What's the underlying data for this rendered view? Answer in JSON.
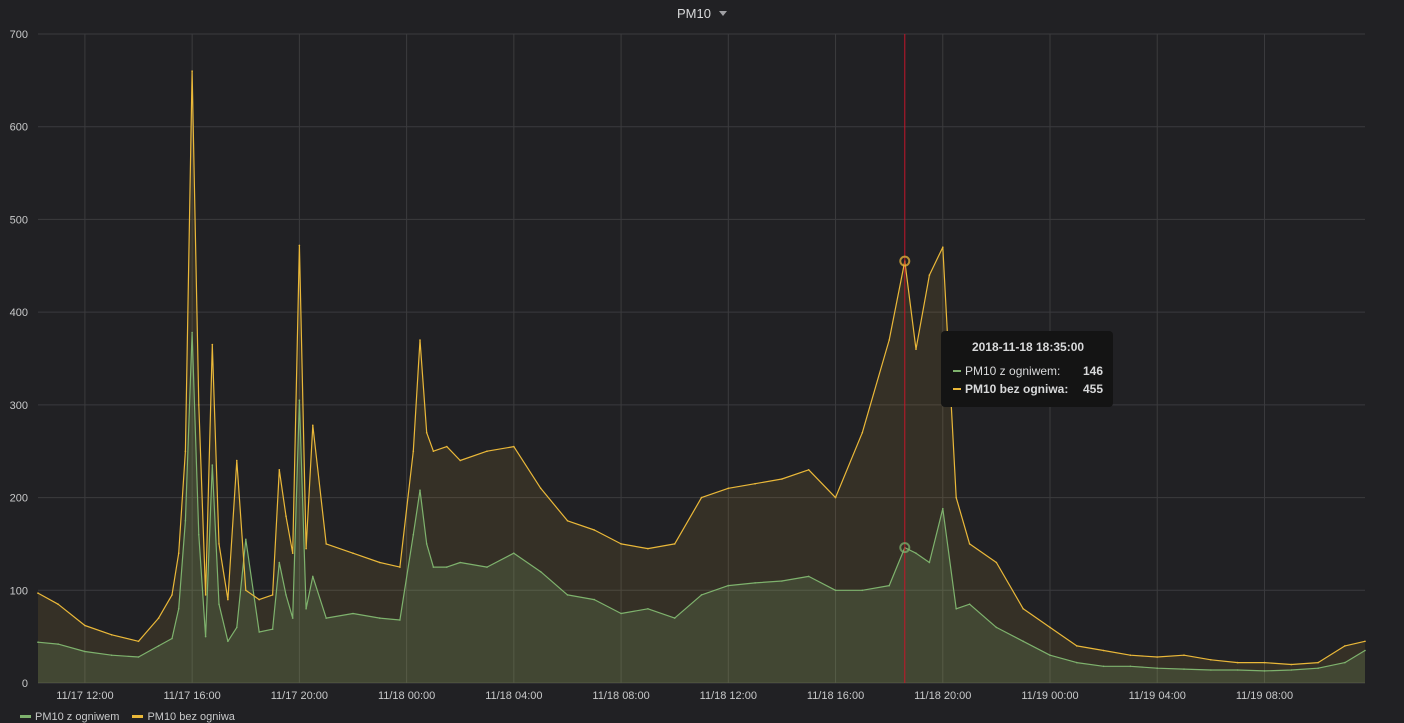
{
  "panel": {
    "title": "PM10"
  },
  "chart_data": {
    "type": "area",
    "title": "PM10",
    "xlabel": "",
    "ylabel": "",
    "ylim": [
      0,
      700
    ],
    "yticks": [
      0,
      100,
      200,
      300,
      400,
      500,
      600,
      700
    ],
    "x_range": [
      "2018-11-17 10:15",
      "2018-11-19 11:45"
    ],
    "xticks": [
      "11/17 12:00",
      "11/17 16:00",
      "11/17 20:00",
      "11/18 00:00",
      "11/18 04:00",
      "11/18 08:00",
      "11/18 12:00",
      "11/18 16:00",
      "11/18 20:00",
      "11/19 00:00",
      "11/19 04:00",
      "11/19 08:00"
    ],
    "grid": true,
    "legend_position": "bottom-left",
    "hover_time": "2018-11-18 18:35",
    "series": [
      {
        "name": "PM10 z ogniwem",
        "color": "#7eb26d",
        "x": [
          "2018-11-17 10:15",
          "2018-11-17 11:00",
          "2018-11-17 12:00",
          "2018-11-17 13:00",
          "2018-11-17 14:00",
          "2018-11-17 14:45",
          "2018-11-17 15:15",
          "2018-11-17 15:30",
          "2018-11-17 15:45",
          "2018-11-17 16:00",
          "2018-11-17 16:15",
          "2018-11-17 16:30",
          "2018-11-17 16:45",
          "2018-11-17 17:00",
          "2018-11-17 17:20",
          "2018-11-17 17:40",
          "2018-11-17 18:00",
          "2018-11-17 18:30",
          "2018-11-17 19:00",
          "2018-11-17 19:15",
          "2018-11-17 19:30",
          "2018-11-17 19:45",
          "2018-11-17 20:00",
          "2018-11-17 20:15",
          "2018-11-17 20:30",
          "2018-11-17 21:00",
          "2018-11-17 22:00",
          "2018-11-17 23:00",
          "2018-11-17 23:45",
          "2018-11-18 00:15",
          "2018-11-18 00:30",
          "2018-11-18 00:45",
          "2018-11-18 01:00",
          "2018-11-18 01:30",
          "2018-11-18 02:00",
          "2018-11-18 03:00",
          "2018-11-18 04:00",
          "2018-11-18 05:00",
          "2018-11-18 06:00",
          "2018-11-18 07:00",
          "2018-11-18 08:00",
          "2018-11-18 09:00",
          "2018-11-18 10:00",
          "2018-11-18 11:00",
          "2018-11-18 12:00",
          "2018-11-18 13:00",
          "2018-11-18 14:00",
          "2018-11-18 15:00",
          "2018-11-18 16:00",
          "2018-11-18 17:00",
          "2018-11-18 18:00",
          "2018-11-18 18:35",
          "2018-11-18 19:00",
          "2018-11-18 19:30",
          "2018-11-18 20:00",
          "2018-11-18 20:30",
          "2018-11-18 21:00",
          "2018-11-18 22:00",
          "2018-11-18 23:00",
          "2018-11-19 00:00",
          "2018-11-19 01:00",
          "2018-11-19 02:00",
          "2018-11-19 03:00",
          "2018-11-19 04:00",
          "2018-11-19 05:00",
          "2018-11-19 06:00",
          "2018-11-19 07:00",
          "2018-11-19 08:00",
          "2018-11-19 09:00",
          "2018-11-19 10:00",
          "2018-11-19 11:00",
          "2018-11-19 11:45"
        ],
        "values": [
          44,
          42,
          34,
          30,
          28,
          40,
          48,
          80,
          175,
          378,
          160,
          50,
          235,
          85,
          45,
          60,
          155,
          55,
          58,
          130,
          95,
          70,
          305,
          80,
          115,
          70,
          75,
          70,
          68,
          160,
          208,
          150,
          125,
          125,
          130,
          125,
          140,
          120,
          95,
          90,
          75,
          80,
          70,
          95,
          105,
          108,
          110,
          115,
          100,
          100,
          105,
          146,
          140,
          130,
          188,
          80,
          85,
          60,
          45,
          30,
          22,
          18,
          18,
          16,
          15,
          14,
          14,
          13,
          14,
          16,
          22,
          35
        ]
      },
      {
        "name": "PM10 bez ogniwa",
        "color": "#eab839",
        "x": [
          "2018-11-17 10:15",
          "2018-11-17 11:00",
          "2018-11-17 12:00",
          "2018-11-17 13:00",
          "2018-11-17 14:00",
          "2018-11-17 14:45",
          "2018-11-17 15:15",
          "2018-11-17 15:30",
          "2018-11-17 15:45",
          "2018-11-17 16:00",
          "2018-11-17 16:15",
          "2018-11-17 16:30",
          "2018-11-17 16:45",
          "2018-11-17 17:00",
          "2018-11-17 17:20",
          "2018-11-17 17:40",
          "2018-11-17 18:00",
          "2018-11-17 18:30",
          "2018-11-17 19:00",
          "2018-11-17 19:15",
          "2018-11-17 19:30",
          "2018-11-17 19:45",
          "2018-11-17 20:00",
          "2018-11-17 20:15",
          "2018-11-17 20:30",
          "2018-11-17 21:00",
          "2018-11-17 22:00",
          "2018-11-17 23:00",
          "2018-11-17 23:45",
          "2018-11-18 00:15",
          "2018-11-18 00:30",
          "2018-11-18 00:45",
          "2018-11-18 01:00",
          "2018-11-18 01:30",
          "2018-11-18 02:00",
          "2018-11-18 03:00",
          "2018-11-18 04:00",
          "2018-11-18 05:00",
          "2018-11-18 06:00",
          "2018-11-18 07:00",
          "2018-11-18 08:00",
          "2018-11-18 09:00",
          "2018-11-18 10:00",
          "2018-11-18 11:00",
          "2018-11-18 12:00",
          "2018-11-18 13:00",
          "2018-11-18 14:00",
          "2018-11-18 15:00",
          "2018-11-18 16:00",
          "2018-11-18 17:00",
          "2018-11-18 18:00",
          "2018-11-18 18:35",
          "2018-11-18 19:00",
          "2018-11-18 19:30",
          "2018-11-18 20:00",
          "2018-11-18 20:30",
          "2018-11-18 21:00",
          "2018-11-18 22:00",
          "2018-11-18 23:00",
          "2018-11-19 00:00",
          "2018-11-19 01:00",
          "2018-11-19 02:00",
          "2018-11-19 03:00",
          "2018-11-19 04:00",
          "2018-11-19 05:00",
          "2018-11-19 06:00",
          "2018-11-19 07:00",
          "2018-11-19 08:00",
          "2018-11-19 09:00",
          "2018-11-19 10:00",
          "2018-11-19 11:00",
          "2018-11-19 11:45"
        ],
        "values": [
          97,
          85,
          62,
          52,
          45,
          70,
          95,
          140,
          250,
          660,
          300,
          95,
          365,
          150,
          90,
          240,
          100,
          90,
          95,
          230,
          180,
          140,
          472,
          145,
          278,
          150,
          140,
          130,
          125,
          250,
          370,
          270,
          250,
          255,
          240,
          250,
          255,
          210,
          175,
          165,
          150,
          145,
          150,
          200,
          210,
          215,
          220,
          230,
          200,
          270,
          370,
          455,
          360,
          440,
          470,
          200,
          150,
          130,
          80,
          60,
          40,
          35,
          30,
          28,
          30,
          25,
          22,
          22,
          20,
          22,
          40,
          45
        ]
      }
    ]
  },
  "tooltip": {
    "time": "2018-11-18 18:35:00",
    "rows": [
      {
        "name": "PM10 z ogniwem:",
        "value": "146"
      },
      {
        "name": "PM10 bez ogniwa:",
        "value": "455"
      }
    ]
  },
  "legend": {
    "items": [
      {
        "name": "PM10 z ogniwem",
        "color": "#7eb26d"
      },
      {
        "name": "PM10 bez ogniwa",
        "color": "#eab839"
      }
    ]
  }
}
